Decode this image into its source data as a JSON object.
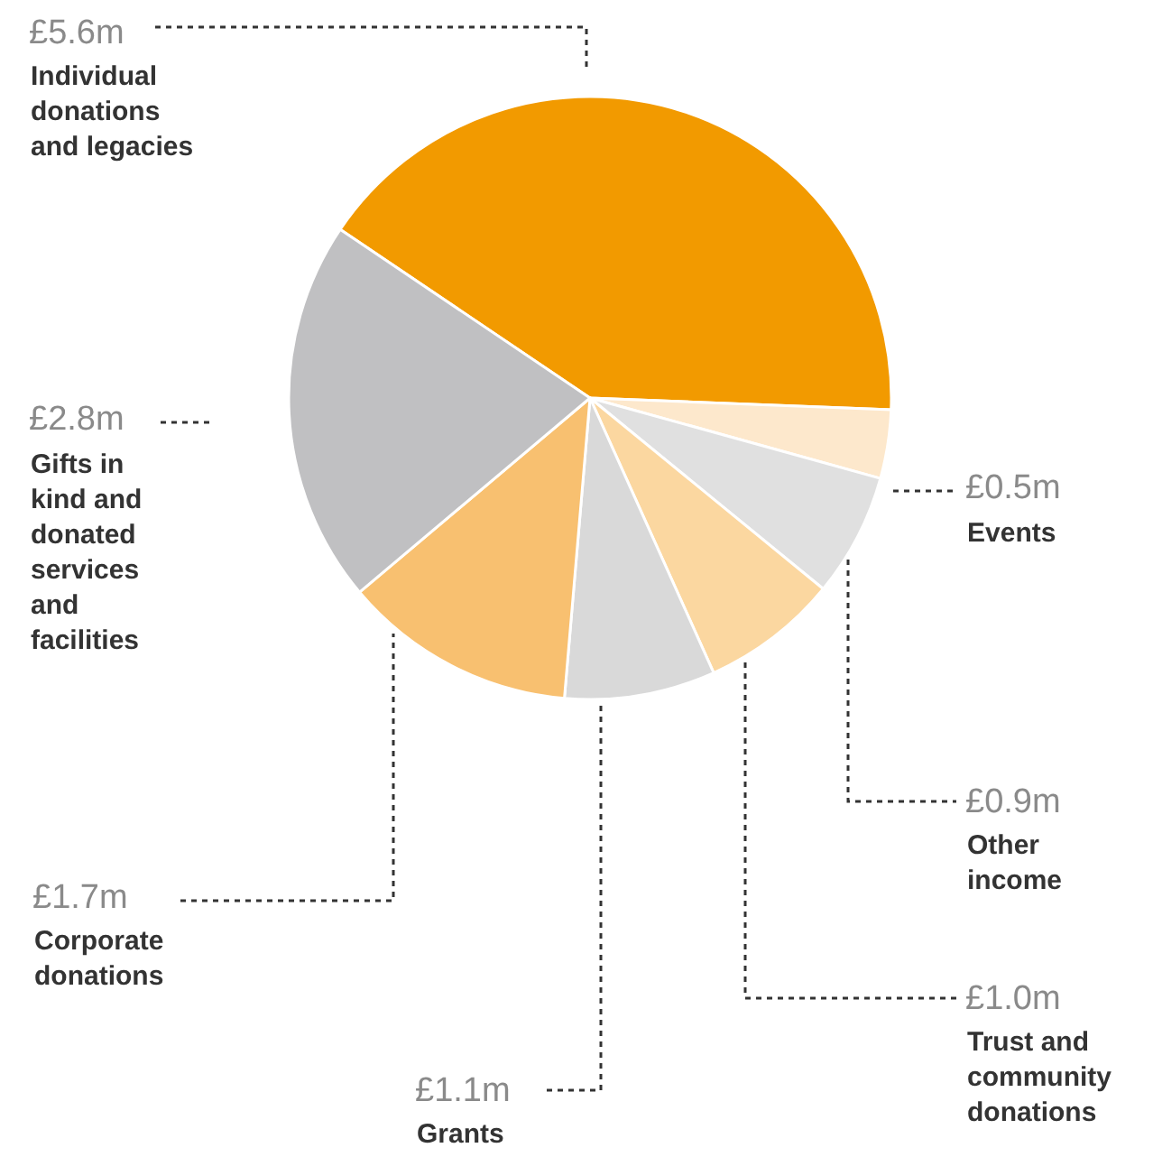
{
  "chart_data": {
    "type": "pie",
    "categories": [
      "Individual donations and legacies",
      "Events",
      "Other income",
      "Trust and community donations",
      "Grants",
      "Corporate donations",
      "Gifts in kind and donated services and facilities"
    ],
    "values": [
      5.6,
      0.5,
      0.9,
      1.0,
      1.1,
      1.7,
      2.8
    ],
    "value_labels": [
      "£5.6m",
      "£0.5m",
      "£0.9m",
      "£1.0m",
      "£1.1m",
      "£1.7m",
      "£2.8m"
    ],
    "colors": [
      "#f29a00",
      "#fde8cc",
      "#e0e0e0",
      "#fbd7a0",
      "#d9d9d9",
      "#f8c070",
      "#c0c0c2"
    ],
    "legend": false
  }
}
